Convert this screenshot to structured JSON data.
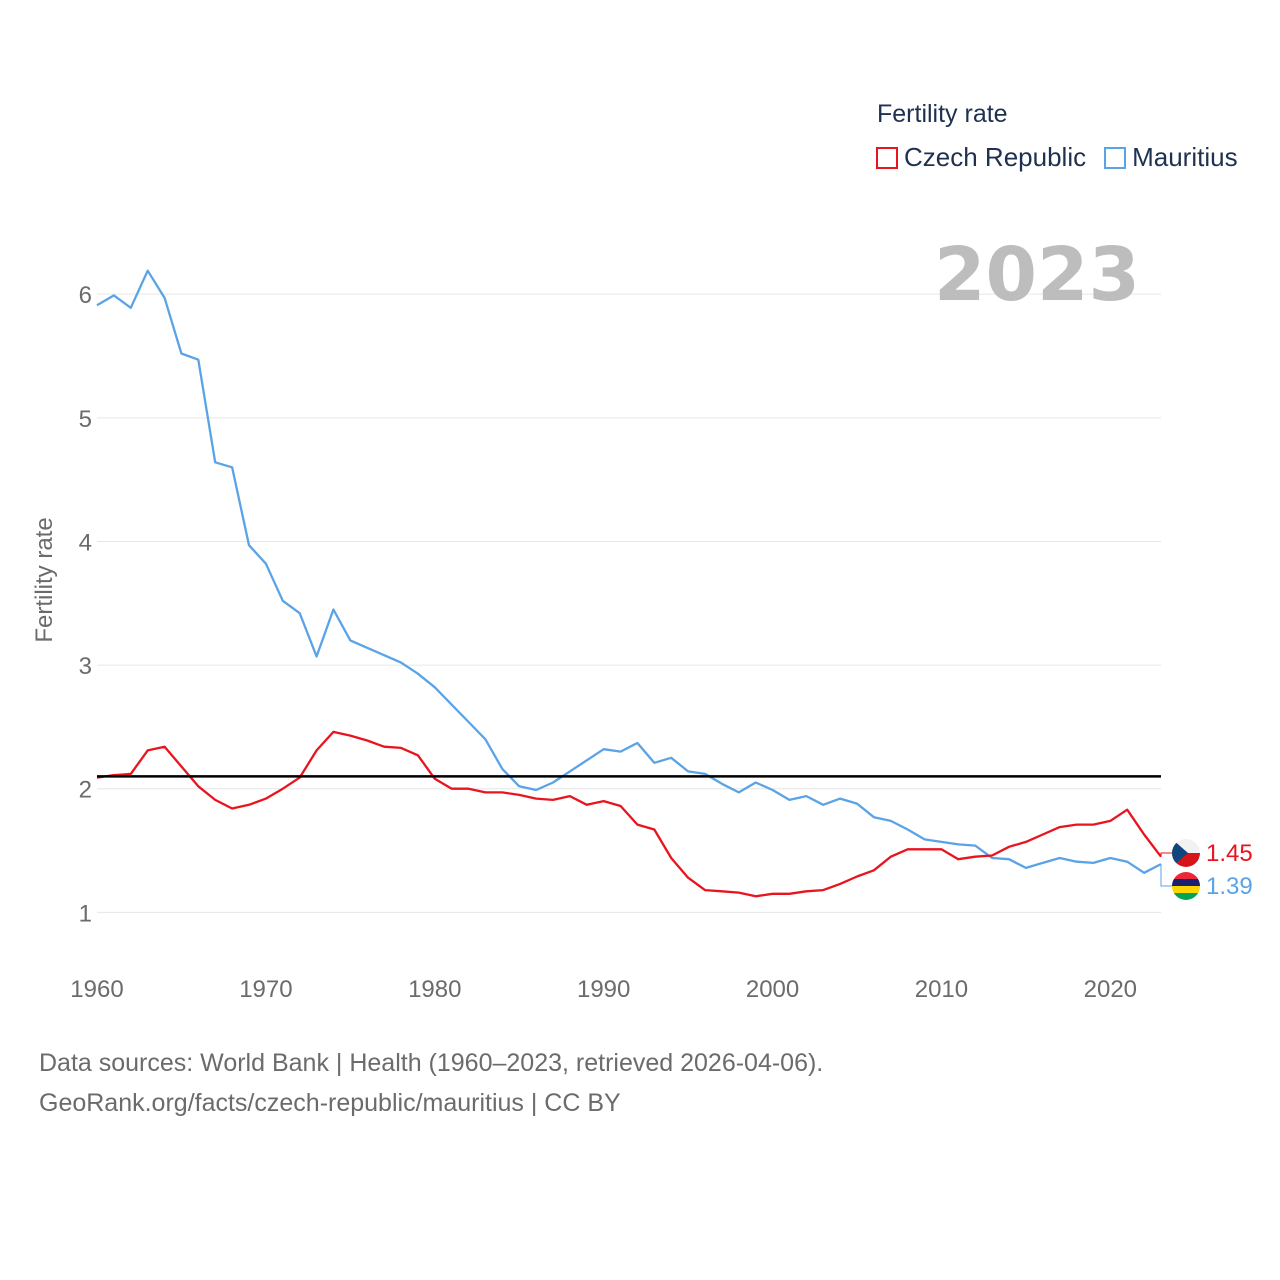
{
  "colors": {
    "czech": "#e8141e",
    "mauritius": "#5aa3e6",
    "replacement": "#000000",
    "grid": "#e6e6e6",
    "axis_text": "#6b6b6b",
    "year": "#bdbdbd"
  },
  "legend": {
    "title": "Fertility rate",
    "items": [
      "Czech Republic",
      "Mauritius"
    ]
  },
  "year_label": "2023",
  "footer": {
    "line1": "Data sources: World Bank | Health (1960–2023, retrieved 2026-04-06).",
    "line2": "GeoRank.org/facts/czech-republic/mauritius | CC BY"
  },
  "chart_data": {
    "type": "line",
    "title": "",
    "xlabel": "",
    "ylabel": "Fertility rate",
    "xlim": [
      1960,
      2023
    ],
    "ylim": [
      0.55,
      6.6
    ],
    "xticks": [
      1960,
      1970,
      1980,
      1990,
      2000,
      2010,
      2020
    ],
    "xtick_labels": [
      "1960",
      "1970",
      "1980",
      "1990",
      "2000",
      "2010",
      "2020"
    ],
    "yticks": [
      1,
      2,
      3,
      4,
      5,
      6
    ],
    "ytick_labels": [
      "1",
      "2",
      "3",
      "4",
      "5",
      "6"
    ],
    "grid": true,
    "reference_line": {
      "y": 2.1,
      "label": ""
    },
    "x": [
      1960,
      1961,
      1962,
      1963,
      1964,
      1965,
      1966,
      1967,
      1968,
      1969,
      1970,
      1971,
      1972,
      1973,
      1974,
      1975,
      1976,
      1977,
      1978,
      1979,
      1980,
      1981,
      1982,
      1983,
      1984,
      1985,
      1986,
      1987,
      1988,
      1989,
      1990,
      1991,
      1992,
      1993,
      1994,
      1995,
      1996,
      1997,
      1998,
      1999,
      2000,
      2001,
      2002,
      2003,
      2004,
      2005,
      2006,
      2007,
      2008,
      2009,
      2010,
      2011,
      2012,
      2013,
      2014,
      2015,
      2016,
      2017,
      2018,
      2019,
      2020,
      2021,
      2022,
      2023
    ],
    "series": [
      {
        "name": "Czech Republic",
        "end_label": "1.45",
        "values": [
          2.09,
          2.11,
          2.12,
          2.31,
          2.34,
          2.18,
          2.02,
          1.91,
          1.84,
          1.87,
          1.92,
          2.0,
          2.09,
          2.31,
          2.46,
          2.43,
          2.39,
          2.34,
          2.33,
          2.27,
          2.08,
          2.0,
          2.0,
          1.97,
          1.97,
          1.95,
          1.92,
          1.91,
          1.94,
          1.87,
          1.9,
          1.86,
          1.71,
          1.67,
          1.44,
          1.28,
          1.18,
          1.17,
          1.16,
          1.13,
          1.15,
          1.15,
          1.17,
          1.18,
          1.23,
          1.29,
          1.34,
          1.45,
          1.51,
          1.51,
          1.51,
          1.43,
          1.45,
          1.46,
          1.53,
          1.57,
          1.63,
          1.69,
          1.71,
          1.71,
          1.74,
          1.83,
          1.63,
          1.45
        ]
      },
      {
        "name": "Mauritius",
        "end_label": "1.39",
        "values": [
          5.91,
          5.99,
          5.89,
          6.19,
          5.97,
          5.52,
          5.47,
          4.64,
          4.6,
          3.97,
          3.82,
          3.52,
          3.42,
          3.07,
          3.45,
          3.2,
          3.14,
          3.08,
          3.02,
          2.93,
          2.82,
          2.68,
          2.54,
          2.4,
          2.16,
          2.02,
          1.99,
          2.05,
          2.14,
          2.23,
          2.32,
          2.3,
          2.37,
          2.21,
          2.25,
          2.14,
          2.12,
          2.04,
          1.97,
          2.05,
          1.99,
          1.91,
          1.94,
          1.87,
          1.92,
          1.88,
          1.77,
          1.74,
          1.67,
          1.59,
          1.57,
          1.55,
          1.54,
          1.44,
          1.43,
          1.36,
          1.4,
          1.44,
          1.41,
          1.4,
          1.44,
          1.41,
          1.32,
          1.39
        ]
      }
    ]
  }
}
